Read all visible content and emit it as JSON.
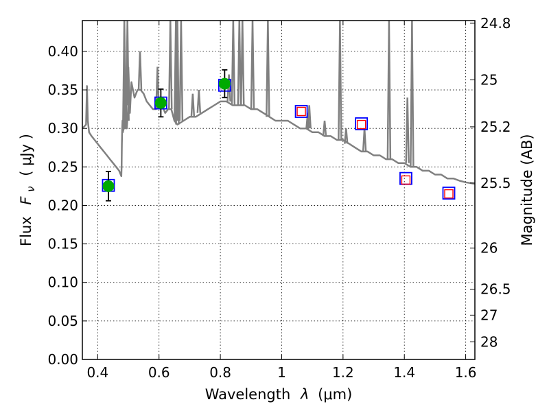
{
  "chart_data": {
    "type": "scatter",
    "xlabel_text": "Wavelength",
    "xlabel_symbol": "λ",
    "xlabel_unit": "(μm)",
    "ylabel_text": "Flux",
    "ylabel_symbol": "F",
    "ylabel_sub": "ν",
    "ylabel_unit": "( μJy )",
    "y2label": "Magnitude (AB)",
    "xlim": [
      0.35,
      1.63
    ],
    "ylim": [
      0.0,
      0.44
    ],
    "grid": true,
    "xticks": [
      {
        "value": 0.4,
        "label": "0.4"
      },
      {
        "value": 0.6,
        "label": "0.6"
      },
      {
        "value": 0.8,
        "label": "0.8"
      },
      {
        "value": 1.0,
        "label": "1"
      },
      {
        "value": 1.2,
        "label": "1.2"
      },
      {
        "value": 1.4,
        "label": "1.4"
      },
      {
        "value": 1.6,
        "label": "1.6"
      }
    ],
    "yticks": [
      {
        "value": 0.0,
        "label": "0.00"
      },
      {
        "value": 0.05,
        "label": "0.05"
      },
      {
        "value": 0.1,
        "label": "0.10"
      },
      {
        "value": 0.15,
        "label": "0.15"
      },
      {
        "value": 0.2,
        "label": "0.20"
      },
      {
        "value": 0.25,
        "label": "0.25"
      },
      {
        "value": 0.3,
        "label": "0.30"
      },
      {
        "value": 0.35,
        "label": "0.35"
      },
      {
        "value": 0.4,
        "label": "0.40"
      }
    ],
    "y2ticks": [
      {
        "mag": 24.8,
        "label": "24.8"
      },
      {
        "mag": 25,
        "label": "25"
      },
      {
        "mag": 25.2,
        "label": "25.2"
      },
      {
        "mag": 25.5,
        "label": "25.5"
      },
      {
        "mag": 26,
        "label": "26"
      },
      {
        "mag": 26.5,
        "label": "26.5"
      },
      {
        "mag": 27,
        "label": "27"
      },
      {
        "mag": 28,
        "label": "28"
      }
    ],
    "series": [
      {
        "name": "model spectrum",
        "kind": "line",
        "color": "#808080",
        "x": [
          0.35,
          0.362,
          0.365,
          0.368,
          0.372,
          0.38,
          0.39,
          0.4,
          0.41,
          0.42,
          0.43,
          0.44,
          0.45,
          0.46,
          0.47,
          0.475,
          0.477,
          0.478,
          0.479,
          0.48,
          0.481,
          0.482,
          0.485,
          0.487,
          0.489,
          0.49,
          0.492,
          0.495,
          0.5,
          0.505,
          0.51,
          0.52,
          0.53,
          0.54,
          0.55,
          0.56,
          0.57,
          0.58,
          0.59,
          0.6,
          0.61,
          0.62,
          0.63,
          0.64,
          0.65,
          0.66,
          0.68,
          0.7,
          0.72,
          0.74,
          0.76,
          0.78,
          0.8,
          0.82,
          0.84,
          0.86,
          0.88,
          0.9,
          0.92,
          0.94,
          0.96,
          0.98,
          1.0,
          1.02,
          1.04,
          1.06,
          1.08,
          1.1,
          1.12,
          1.14,
          1.16,
          1.18,
          1.2,
          1.22,
          1.24,
          1.26,
          1.28,
          1.3,
          1.32,
          1.34,
          1.36,
          1.38,
          1.4,
          1.42,
          1.44,
          1.46,
          1.48,
          1.5,
          1.52,
          1.54,
          1.56,
          1.58,
          1.6,
          1.63
        ],
        "y": [
          0.3,
          0.305,
          0.355,
          0.31,
          0.295,
          0.29,
          0.285,
          0.28,
          0.275,
          0.27,
          0.265,
          0.26,
          0.255,
          0.25,
          0.245,
          0.24,
          0.238,
          0.25,
          0.28,
          0.3,
          0.31,
          0.295,
          0.3,
          0.44,
          0.3,
          0.305,
          0.31,
          0.3,
          0.33,
          0.32,
          0.36,
          0.34,
          0.35,
          0.35,
          0.345,
          0.335,
          0.33,
          0.325,
          0.325,
          0.33,
          0.33,
          0.32,
          0.325,
          0.325,
          0.31,
          0.305,
          0.31,
          0.315,
          0.315,
          0.32,
          0.325,
          0.33,
          0.335,
          0.335,
          0.33,
          0.33,
          0.33,
          0.325,
          0.325,
          0.32,
          0.315,
          0.31,
          0.31,
          0.31,
          0.305,
          0.3,
          0.3,
          0.295,
          0.295,
          0.29,
          0.29,
          0.285,
          0.285,
          0.28,
          0.275,
          0.27,
          0.27,
          0.265,
          0.265,
          0.26,
          0.26,
          0.255,
          0.255,
          0.25,
          0.25,
          0.245,
          0.245,
          0.24,
          0.24,
          0.235,
          0.235,
          0.232,
          0.23,
          0.228
        ]
      },
      {
        "name": "spikes",
        "kind": "spikes",
        "color": "#808080",
        "lines": [
          {
            "x": 0.487,
            "base": 0.3,
            "top": 0.44
          },
          {
            "x": 0.497,
            "base": 0.31,
            "top": 0.44
          },
          {
            "x": 0.5,
            "base": 0.33,
            "top": 0.38
          },
          {
            "x": 0.538,
            "base": 0.35,
            "top": 0.4
          },
          {
            "x": 0.595,
            "base": 0.325,
            "top": 0.38
          },
          {
            "x": 0.637,
            "base": 0.325,
            "top": 0.44
          },
          {
            "x": 0.655,
            "base": 0.31,
            "top": 0.44
          },
          {
            "x": 0.66,
            "base": 0.305,
            "top": 0.44
          },
          {
            "x": 0.672,
            "base": 0.31,
            "top": 0.44
          },
          {
            "x": 0.71,
            "base": 0.315,
            "top": 0.345
          },
          {
            "x": 0.73,
            "base": 0.32,
            "top": 0.35
          },
          {
            "x": 0.828,
            "base": 0.335,
            "top": 0.37
          },
          {
            "x": 0.842,
            "base": 0.33,
            "top": 0.44
          },
          {
            "x": 0.862,
            "base": 0.33,
            "top": 0.44
          },
          {
            "x": 0.872,
            "base": 0.33,
            "top": 0.44
          },
          {
            "x": 0.905,
            "base": 0.325,
            "top": 0.44
          },
          {
            "x": 0.955,
            "base": 0.315,
            "top": 0.44
          },
          {
            "x": 1.085,
            "base": 0.3,
            "top": 0.32
          },
          {
            "x": 1.09,
            "base": 0.3,
            "top": 0.33
          },
          {
            "x": 1.14,
            "base": 0.29,
            "top": 0.31
          },
          {
            "x": 1.19,
            "base": 0.285,
            "top": 0.44
          },
          {
            "x": 1.21,
            "base": 0.28,
            "top": 0.3
          },
          {
            "x": 1.27,
            "base": 0.27,
            "top": 0.3
          },
          {
            "x": 1.35,
            "base": 0.26,
            "top": 0.44
          },
          {
            "x": 1.41,
            "base": 0.255,
            "top": 0.34
          },
          {
            "x": 1.425,
            "base": 0.25,
            "top": 0.44
          }
        ]
      },
      {
        "name": "model photometry",
        "kind": "squares",
        "color": "#0000ff",
        "points": [
          {
            "x": 0.435,
            "y": 0.226
          },
          {
            "x": 0.606,
            "y": 0.333
          },
          {
            "x": 0.814,
            "y": 0.356
          },
          {
            "x": 1.064,
            "y": 0.322
          },
          {
            "x": 1.26,
            "y": 0.306
          },
          {
            "x": 1.405,
            "y": 0.235
          },
          {
            "x": 1.545,
            "y": 0.216
          }
        ]
      },
      {
        "name": "upper limits",
        "kind": "open-squares",
        "color": "#ff0000",
        "points": [
          {
            "x": 1.064,
            "y": 0.322
          },
          {
            "x": 1.26,
            "y": 0.305
          },
          {
            "x": 1.405,
            "y": 0.233
          },
          {
            "x": 1.545,
            "y": 0.215
          }
        ]
      },
      {
        "name": "observed photometry",
        "kind": "circles",
        "color": "#00aa00",
        "points": [
          {
            "x": 0.435,
            "y": 0.225,
            "err": 0.019
          },
          {
            "x": 0.606,
            "y": 0.333,
            "err": 0.018
          },
          {
            "x": 0.814,
            "y": 0.358,
            "err": 0.018
          }
        ]
      }
    ]
  }
}
